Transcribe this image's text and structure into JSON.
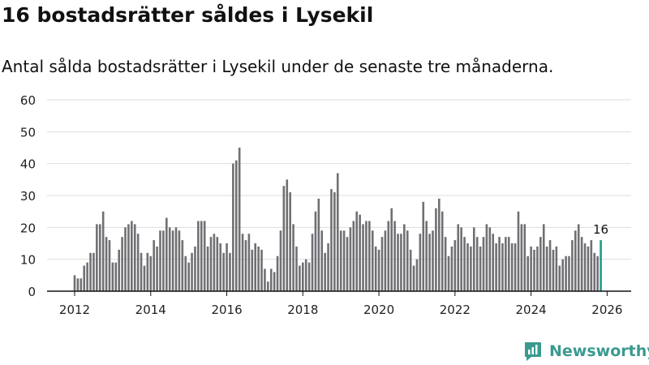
{
  "title": "16 bostadsrätter såldes i Lysekil",
  "subtitle": "Antal sålda bostadsrätter i Lysekil under de senaste tre månaderna.",
  "brand": {
    "name": "Newsworthy",
    "icon": "newsworthy-logo-icon"
  },
  "colors": {
    "bar": "#707074",
    "highlight": "#1f9a8d",
    "grid": "#dddddd",
    "axis": "#111111",
    "brand": "#3a9a8f"
  },
  "chart_data": {
    "type": "bar",
    "title": "16 bostadsrätter såldes i Lysekil",
    "xlabel": "",
    "ylabel": "",
    "ylim": [
      0,
      60
    ],
    "yticks": [
      0,
      10,
      20,
      30,
      40,
      50,
      60
    ],
    "xticks": [
      "2012",
      "2014",
      "2016",
      "2018",
      "2020",
      "2022",
      "2024",
      "2026"
    ],
    "grid": true,
    "start": "2012-01",
    "frequency": "monthly",
    "highlight_label": "16",
    "values": [
      5,
      4,
      4,
      8,
      9,
      12,
      12,
      21,
      21,
      25,
      17,
      16,
      9,
      9,
      13,
      17,
      20,
      21,
      22,
      21,
      18,
      12,
      8,
      12,
      11,
      16,
      14,
      19,
      19,
      23,
      20,
      19,
      20,
      19,
      16,
      11,
      9,
      12,
      14,
      22,
      22,
      22,
      14,
      17,
      18,
      17,
      15,
      12,
      15,
      12,
      40,
      41,
      45,
      18,
      16,
      18,
      13,
      15,
      14,
      13,
      7,
      3,
      7,
      6,
      11,
      19,
      33,
      35,
      31,
      21,
      14,
      8,
      9,
      10,
      9,
      18,
      25,
      29,
      19,
      12,
      15,
      32,
      31,
      37,
      19,
      19,
      17,
      20,
      22,
      25,
      24,
      21,
      22,
      22,
      19,
      14,
      13,
      17,
      19,
      22,
      26,
      22,
      18,
      18,
      21,
      19,
      13,
      8,
      10,
      18,
      28,
      22,
      18,
      19,
      26,
      29,
      25,
      17,
      11,
      14,
      16,
      21,
      20,
      17,
      15,
      14,
      20,
      17,
      14,
      17,
      21,
      20,
      18,
      15,
      17,
      15,
      17,
      17,
      15,
      15,
      25,
      21,
      21,
      11,
      14,
      13,
      14,
      17,
      21,
      14,
      16,
      13,
      14,
      8,
      10,
      11,
      11,
      16,
      19,
      21,
      17,
      15,
      14,
      16,
      12,
      11,
      16
    ]
  }
}
